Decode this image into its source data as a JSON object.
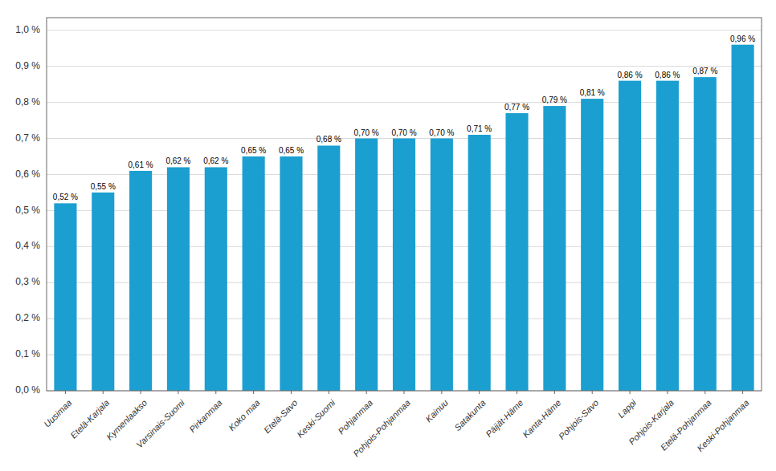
{
  "chart_data": {
    "type": "bar",
    "categories": [
      "Uusimaa",
      "Etelä-Karjala",
      "Kymenlaakso",
      "Varsinais-Suomi",
      "Pirkanmaa",
      "Koko maa",
      "Etelä-Savo",
      "Keski-Suomi",
      "Pohjanmaa",
      "Pohjois-Pohjanmaa",
      "Kainuu",
      "Satakunta",
      "Päijät-Häme",
      "Kanta-Häme",
      "Pohjois-Savo",
      "Lappi",
      "Pohjois-Karjala",
      "Etelä-Pohjanmaa",
      "Keski-Pohjanmaa"
    ],
    "values": [
      0.52,
      0.55,
      0.61,
      0.62,
      0.62,
      0.65,
      0.65,
      0.68,
      0.7,
      0.7,
      0.7,
      0.71,
      0.77,
      0.79,
      0.81,
      0.86,
      0.86,
      0.87,
      0.96
    ],
    "value_labels": [
      "0,52 %",
      "0,55 %",
      "0,61 %",
      "0,62 %",
      "0,62 %",
      "0,65 %",
      "0,65 %",
      "0,68 %",
      "0,70 %",
      "0,70 %",
      "0,70 %",
      "0,71 %",
      "0,77 %",
      "0,79 %",
      "0,81 %",
      "0,86 %",
      "0,86 %",
      "0,87 %",
      "0,96 %"
    ],
    "color": "#1a9fd0",
    "ylim": [
      0.0,
      1.035
    ],
    "yticks": [
      {
        "value": 0.0,
        "label": "0,0 %"
      },
      {
        "value": 0.1,
        "label": "0,1 %"
      },
      {
        "value": 0.2,
        "label": "0,2 %"
      },
      {
        "value": 0.3,
        "label": "0,3 %"
      },
      {
        "value": 0.4,
        "label": "0,4 %"
      },
      {
        "value": 0.5,
        "label": "0,5 %"
      },
      {
        "value": 0.6,
        "label": "0,6 %"
      },
      {
        "value": 0.7,
        "label": "0,7 %"
      },
      {
        "value": 0.8,
        "label": "0,8 %"
      },
      {
        "value": 0.9,
        "label": "0,9 %"
      },
      {
        "value": 1.0,
        "label": "1,0 %"
      }
    ],
    "grid": true,
    "data_labels": true
  }
}
